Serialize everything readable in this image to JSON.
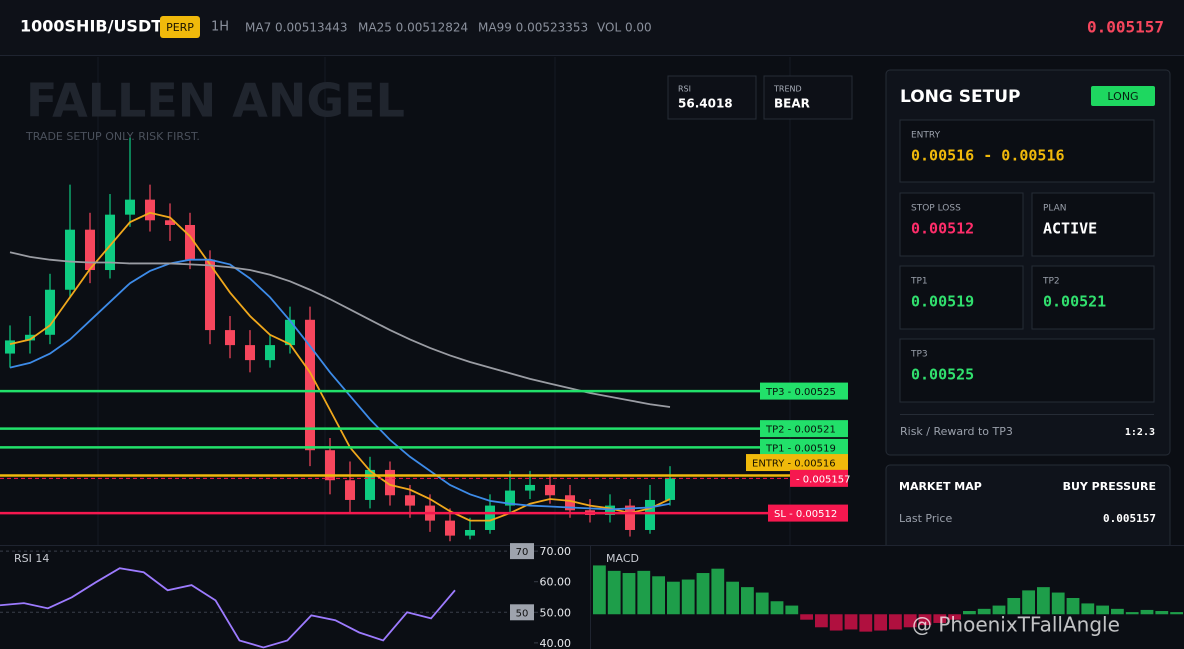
{
  "header": {
    "symbol": "1000SHIB/USDT",
    "badge": "PERP",
    "interval": "1H",
    "indicators": [
      "MA7 0.00513443",
      "MA25 0.00512824",
      "MA99 0.00523353",
      "VOL 0.00"
    ],
    "last_price": "0.005157"
  },
  "overlay": {
    "title": "FALLEN ANGEL",
    "subtitle": "TRADE SETUP ONLY. RISK FIRST.",
    "stats": [
      {
        "label": "RSI",
        "value": "56.4018"
      },
      {
        "label": "TREND",
        "value": "BEAR"
      }
    ]
  },
  "chart_data": [
    {
      "type": "candlestick",
      "ylim": [
        0.005086,
        0.005606
      ],
      "up_color": "#0ecb81",
      "down_color": "#f6465d",
      "open": [
        0.00529,
        0.005304,
        0.00531,
        0.005358,
        0.005422,
        0.005379,
        0.005438,
        0.005454,
        0.005432,
        0.005427,
        0.00539,
        0.005315,
        0.005299,
        0.005283,
        0.005299,
        0.005326,
        0.005187,
        0.005155,
        0.005134,
        0.005166,
        0.005139,
        0.005128,
        0.005112,
        0.005096,
        0.005102,
        0.005128,
        0.005144,
        0.00515,
        0.005139,
        0.005123,
        0.005118,
        0.005128,
        0.005102,
        0.005134
      ],
      "high": [
        0.00532,
        0.00533,
        0.005375,
        0.00547,
        0.00544,
        0.00546,
        0.00552,
        0.00547,
        0.00545,
        0.00544,
        0.0054,
        0.00533,
        0.005315,
        0.00531,
        0.00534,
        0.00534,
        0.0052,
        0.005175,
        0.00518,
        0.005175,
        0.00515,
        0.00514,
        0.005125,
        0.005115,
        0.00514,
        0.005165,
        0.005165,
        0.00516,
        0.00515,
        0.005135,
        0.00514,
        0.005135,
        0.00515,
        0.00517
      ],
      "low": [
        0.005275,
        0.00529,
        0.0053,
        0.00535,
        0.005365,
        0.00537,
        0.005425,
        0.00542,
        0.00541,
        0.00538,
        0.0053,
        0.005285,
        0.00527,
        0.005275,
        0.00529,
        0.00517,
        0.00514,
        0.00512,
        0.005125,
        0.005128,
        0.005115,
        0.0051,
        0.00509,
        0.005092,
        0.005098,
        0.00512,
        0.005135,
        0.00513,
        0.005115,
        0.00511,
        0.00511,
        0.005095,
        0.005098,
        0.005128
      ],
      "close": [
        0.005304,
        0.00531,
        0.005358,
        0.005422,
        0.005379,
        0.005438,
        0.005454,
        0.005432,
        0.005427,
        0.00539,
        0.005315,
        0.005299,
        0.005283,
        0.005299,
        0.005326,
        0.005187,
        0.005155,
        0.005134,
        0.005166,
        0.005139,
        0.005128,
        0.005112,
        0.005096,
        0.005102,
        0.005128,
        0.005144,
        0.00515,
        0.005139,
        0.005123,
        0.005118,
        0.005128,
        0.005102,
        0.005134,
        0.005157
      ],
      "series": [
        {
          "color": "#f0a81c",
          "values": [
            0.0053,
            0.005305,
            0.00532,
            0.00535,
            0.00538,
            0.005405,
            0.00543,
            0.00544,
            0.005435,
            0.005415,
            0.005385,
            0.005355,
            0.00533,
            0.00531,
            0.0053,
            0.00527,
            0.00523,
            0.00519,
            0.005165,
            0.00515,
            0.005145,
            0.005135,
            0.005122,
            0.005112,
            0.005112,
            0.00512,
            0.00513,
            0.005135,
            0.005133,
            0.005128,
            0.005125,
            0.00512,
            0.005125,
            0.005135
          ]
        },
        {
          "color": "#3d8be8",
          "values": [
            0.005275,
            0.00528,
            0.00529,
            0.005305,
            0.005325,
            0.005345,
            0.005365,
            0.005378,
            0.005386,
            0.00539,
            0.00539,
            0.005385,
            0.00537,
            0.00535,
            0.005325,
            0.005298,
            0.00527,
            0.005245,
            0.00522,
            0.005198,
            0.00518,
            0.005165,
            0.00515,
            0.00514,
            0.005133,
            0.00513,
            0.005128,
            0.005127,
            0.005126,
            0.005125,
            0.005124,
            0.005125,
            0.005126,
            0.00513
          ]
        },
        {
          "color": "#9a9ca3",
          "values": [
            0.005398,
            0.005393,
            0.00539,
            0.005388,
            0.005387,
            0.005387,
            0.005386,
            0.005386,
            0.005386,
            0.005385,
            0.005384,
            0.005382,
            0.005379,
            0.005374,
            0.005367,
            0.005358,
            0.005348,
            0.005337,
            0.005326,
            0.005315,
            0.005305,
            0.005296,
            0.005288,
            0.005281,
            0.005275,
            0.005269,
            0.005263,
            0.005258,
            0.005253,
            0.005248,
            0.005244,
            0.00524,
            0.005236,
            0.005233
          ]
        }
      ],
      "levels": [
        {
          "text": "TP3 - 0.00525",
          "value": 0.00525,
          "color": "#22e06a",
          "text_color": "#08140c"
        },
        {
          "text": "TP2 - 0.00521",
          "value": 0.00521,
          "color": "#22e06a",
          "text_color": "#08140c"
        },
        {
          "text": "TP1 - 0.00519",
          "value": 0.00519,
          "color": "#22e06a",
          "text_color": "#08140c"
        },
        {
          "text": "ENTRY - 0.00516",
          "value": 0.00516,
          "color": "#f0b90b",
          "text_color": "#1a1300"
        },
        {
          "text": "- 0.005157",
          "value": 0.005157,
          "color": "#f6184f",
          "text_color": "#ffffff"
        },
        {
          "text": "SL - 0.00512",
          "value": 0.00512,
          "color": "#f6184f",
          "text_color": "#ffffff"
        }
      ]
    },
    {
      "type": "line",
      "title": "RSI 14",
      "color": "#9d7bff",
      "ylim": [
        38,
        72
      ],
      "yticks": [
        {
          "value": 70,
          "label": "70.00"
        },
        {
          "value": 60,
          "label": "60.00"
        },
        {
          "value": 50,
          "label": "50.00"
        },
        {
          "value": 40,
          "label": "40.00"
        }
      ],
      "levels": [
        70,
        50
      ],
      "values": [
        52.3,
        53.0,
        51.3,
        54.9,
        59.8,
        64.4,
        63.1,
        57.2,
        58.9,
        53.9,
        40.8,
        38.5,
        40.8,
        49.0,
        47.4,
        43.4,
        40.8,
        50.0,
        48.0,
        57.2
      ]
    },
    {
      "type": "bar",
      "title": "MACD",
      "ylim": [
        -32,
        50
      ],
      "up_color": "#1e9e4a",
      "down_color": "#b0103f",
      "values": [
        45,
        40,
        38,
        40,
        35,
        30,
        32,
        38,
        42,
        30,
        25,
        20,
        12,
        8,
        -5,
        -12,
        -15,
        -14,
        -16,
        -15,
        -14,
        -12,
        -10,
        -8,
        -5,
        3,
        5,
        8,
        15,
        22,
        25,
        20,
        15,
        10,
        8,
        5,
        2,
        4,
        3,
        2
      ]
    }
  ],
  "setup_panel": {
    "title": "LONG SETUP",
    "badge": "LONG",
    "entry": {
      "label": "ENTRY",
      "value": "0.00516 - 0.00516"
    },
    "stop_loss": {
      "label": "STOP LOSS",
      "value": "0.00512"
    },
    "plan": {
      "label": "PLAN",
      "value": "ACTIVE"
    },
    "tp1": {
      "label": "TP1",
      "value": "0.00519"
    },
    "tp2": {
      "label": "TP2",
      "value": "0.00521"
    },
    "tp3": {
      "label": "TP3",
      "value": "0.00525"
    },
    "risk_reward": {
      "label": "Risk / Reward to TP3",
      "value": "1:2.3"
    }
  },
  "market_map": {
    "title": "MARKET MAP",
    "status": "BUY PRESSURE",
    "last_price_label": "Last Price",
    "last_price": "0.005157"
  },
  "watermark": "@ PhoenixTFallAngle"
}
